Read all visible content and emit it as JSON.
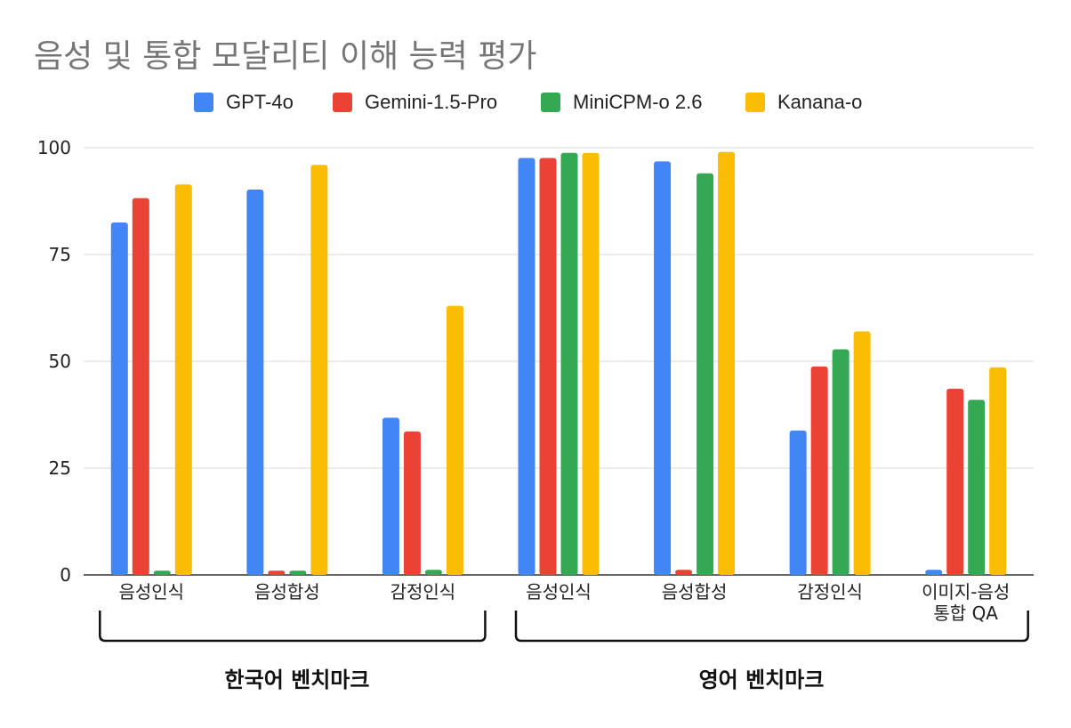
{
  "title": "음성 및 통합 모달리티 이해 능력 평가",
  "colors": {
    "gpt4o": "#4285F4",
    "gemini": "#EA4335",
    "minicpm": "#34A853",
    "kanana": "#FBBC04",
    "grid": "#d9d9d9",
    "axis": "#333333",
    "title": "#757575"
  },
  "legend": [
    {
      "label": "GPT-4o",
      "color": "#4285F4"
    },
    {
      "label": "Gemini-1.5-Pro",
      "color": "#EA4335"
    },
    {
      "label": "MiniCPM-o 2.6",
      "color": "#34A853"
    },
    {
      "label": "Kanana-o",
      "color": "#FBBC04"
    }
  ],
  "groups": [
    {
      "label": "한국어 벤치마크"
    },
    {
      "label": "영어 벤치마크"
    }
  ],
  "chart_data": {
    "type": "bar",
    "title": "음성 및 통합 모달리티 이해 능력 평가",
    "categories": [
      "음성인식",
      "음성합성",
      "감정인식",
      "음성인식",
      "음성합성",
      "감정인식",
      "이미지-음성\n통합 QA"
    ],
    "series": [
      {
        "name": "GPT-4o",
        "values": [
          82.5,
          90.2,
          36.8,
          97.6,
          96.8,
          33.8,
          1.2
        ]
      },
      {
        "name": "Gemini-1.5-Pro",
        "values": [
          88.2,
          1.0,
          33.6,
          97.6,
          1.2,
          48.8,
          43.6
        ]
      },
      {
        "name": "MiniCPM-o 2.6",
        "values": [
          1.0,
          1.0,
          1.2,
          98.8,
          94.0,
          52.8,
          41.0
        ]
      },
      {
        "name": "Kanana-o",
        "values": [
          91.4,
          96.0,
          63.0,
          98.8,
          99.0,
          57.0,
          48.6
        ]
      }
    ],
    "xlabel": "",
    "ylabel": "",
    "ylim": [
      0,
      100
    ],
    "yticks": [
      "0",
      "25",
      "50",
      "75",
      "100"
    ],
    "grid": true,
    "legend_position": "top"
  }
}
